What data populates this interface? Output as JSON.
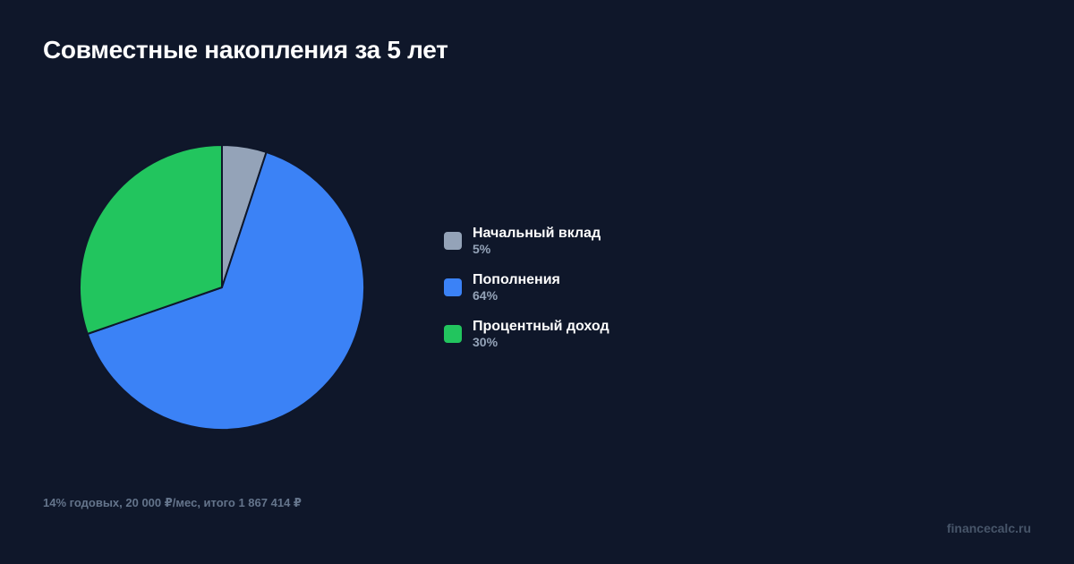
{
  "title": "Совместные накопления за 5 лет",
  "footnote": "14% годовых, 20 000 ₽/мес, итого 1 867 414 ₽",
  "brand": "financecalc.ru",
  "legend": [
    {
      "label": "Начальный вклад",
      "pct": "5%",
      "color": "#94a3b8"
    },
    {
      "label": "Пополнения",
      "pct": "64%",
      "color": "#3b82f6"
    },
    {
      "label": "Процентный доход",
      "pct": "30%",
      "color": "#22c55e"
    }
  ],
  "chart_data": {
    "type": "pie",
    "title": "Совместные накопления за 5 лет",
    "categories": [
      "Начальный вклад",
      "Пополнения",
      "Процентный доход"
    ],
    "values": [
      5,
      64,
      30
    ],
    "colors": [
      "#94a3b8",
      "#3b82f6",
      "#22c55e"
    ],
    "legend_position": "right",
    "start_angle": "top, clockwise",
    "annotation": "14% годовых, 20 000 ₽/мес, итого 1 867 414 ₽"
  }
}
